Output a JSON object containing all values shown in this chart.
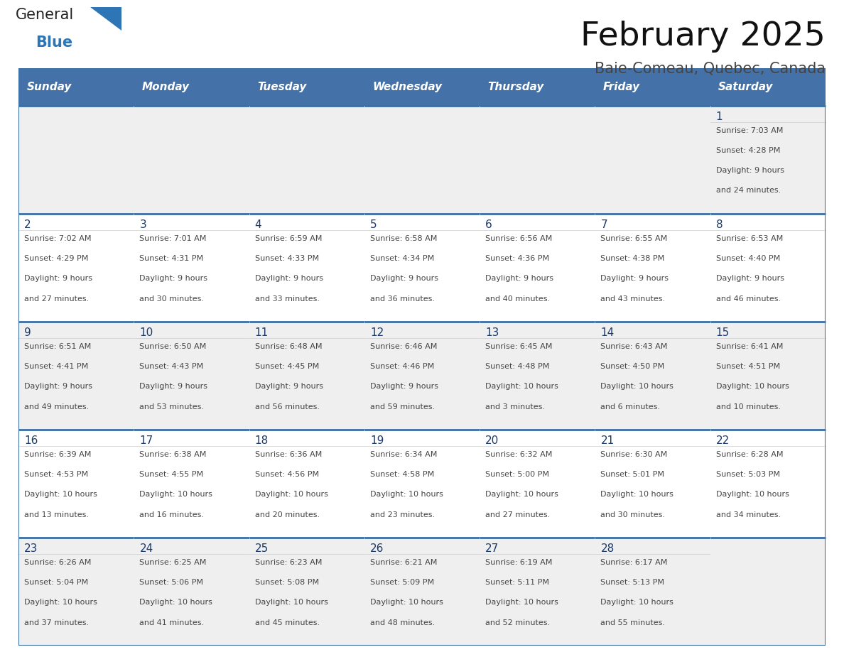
{
  "title": "February 2025",
  "subtitle": "Baie-Comeau, Quebec, Canada",
  "days_of_week": [
    "Sunday",
    "Monday",
    "Tuesday",
    "Wednesday",
    "Thursday",
    "Friday",
    "Saturday"
  ],
  "header_bg": "#4472A8",
  "header_text": "#FFFFFF",
  "row_bg_even": "#EFEFEF",
  "row_bg_odd": "#FFFFFF",
  "border_color": "#3A6EA5",
  "text_color": "#444444",
  "day_number_color": "#1A3A6B",
  "logo_general_color": "#222222",
  "logo_blue_color": "#2E75B6",
  "calendar_data": [
    [
      null,
      null,
      null,
      null,
      null,
      null,
      {
        "day": 1,
        "sunrise": "7:03 AM",
        "sunset": "4:28 PM",
        "daylight1": "9 hours",
        "daylight2": "and 24 minutes."
      }
    ],
    [
      {
        "day": 2,
        "sunrise": "7:02 AM",
        "sunset": "4:29 PM",
        "daylight1": "9 hours",
        "daylight2": "and 27 minutes."
      },
      {
        "day": 3,
        "sunrise": "7:01 AM",
        "sunset": "4:31 PM",
        "daylight1": "9 hours",
        "daylight2": "and 30 minutes."
      },
      {
        "day": 4,
        "sunrise": "6:59 AM",
        "sunset": "4:33 PM",
        "daylight1": "9 hours",
        "daylight2": "and 33 minutes."
      },
      {
        "day": 5,
        "sunrise": "6:58 AM",
        "sunset": "4:34 PM",
        "daylight1": "9 hours",
        "daylight2": "and 36 minutes."
      },
      {
        "day": 6,
        "sunrise": "6:56 AM",
        "sunset": "4:36 PM",
        "daylight1": "9 hours",
        "daylight2": "and 40 minutes."
      },
      {
        "day": 7,
        "sunrise": "6:55 AM",
        "sunset": "4:38 PM",
        "daylight1": "9 hours",
        "daylight2": "and 43 minutes."
      },
      {
        "day": 8,
        "sunrise": "6:53 AM",
        "sunset": "4:40 PM",
        "daylight1": "9 hours",
        "daylight2": "and 46 minutes."
      }
    ],
    [
      {
        "day": 9,
        "sunrise": "6:51 AM",
        "sunset": "4:41 PM",
        "daylight1": "9 hours",
        "daylight2": "and 49 minutes."
      },
      {
        "day": 10,
        "sunrise": "6:50 AM",
        "sunset": "4:43 PM",
        "daylight1": "9 hours",
        "daylight2": "and 53 minutes."
      },
      {
        "day": 11,
        "sunrise": "6:48 AM",
        "sunset": "4:45 PM",
        "daylight1": "9 hours",
        "daylight2": "and 56 minutes."
      },
      {
        "day": 12,
        "sunrise": "6:46 AM",
        "sunset": "4:46 PM",
        "daylight1": "9 hours",
        "daylight2": "and 59 minutes."
      },
      {
        "day": 13,
        "sunrise": "6:45 AM",
        "sunset": "4:48 PM",
        "daylight1": "10 hours",
        "daylight2": "and 3 minutes."
      },
      {
        "day": 14,
        "sunrise": "6:43 AM",
        "sunset": "4:50 PM",
        "daylight1": "10 hours",
        "daylight2": "and 6 minutes."
      },
      {
        "day": 15,
        "sunrise": "6:41 AM",
        "sunset": "4:51 PM",
        "daylight1": "10 hours",
        "daylight2": "and 10 minutes."
      }
    ],
    [
      {
        "day": 16,
        "sunrise": "6:39 AM",
        "sunset": "4:53 PM",
        "daylight1": "10 hours",
        "daylight2": "and 13 minutes."
      },
      {
        "day": 17,
        "sunrise": "6:38 AM",
        "sunset": "4:55 PM",
        "daylight1": "10 hours",
        "daylight2": "and 16 minutes."
      },
      {
        "day": 18,
        "sunrise": "6:36 AM",
        "sunset": "4:56 PM",
        "daylight1": "10 hours",
        "daylight2": "and 20 minutes."
      },
      {
        "day": 19,
        "sunrise": "6:34 AM",
        "sunset": "4:58 PM",
        "daylight1": "10 hours",
        "daylight2": "and 23 minutes."
      },
      {
        "day": 20,
        "sunrise": "6:32 AM",
        "sunset": "5:00 PM",
        "daylight1": "10 hours",
        "daylight2": "and 27 minutes."
      },
      {
        "day": 21,
        "sunrise": "6:30 AM",
        "sunset": "5:01 PM",
        "daylight1": "10 hours",
        "daylight2": "and 30 minutes."
      },
      {
        "day": 22,
        "sunrise": "6:28 AM",
        "sunset": "5:03 PM",
        "daylight1": "10 hours",
        "daylight2": "and 34 minutes."
      }
    ],
    [
      {
        "day": 23,
        "sunrise": "6:26 AM",
        "sunset": "5:04 PM",
        "daylight1": "10 hours",
        "daylight2": "and 37 minutes."
      },
      {
        "day": 24,
        "sunrise": "6:25 AM",
        "sunset": "5:06 PM",
        "daylight1": "10 hours",
        "daylight2": "and 41 minutes."
      },
      {
        "day": 25,
        "sunrise": "6:23 AM",
        "sunset": "5:08 PM",
        "daylight1": "10 hours",
        "daylight2": "and 45 minutes."
      },
      {
        "day": 26,
        "sunrise": "6:21 AM",
        "sunset": "5:09 PM",
        "daylight1": "10 hours",
        "daylight2": "and 48 minutes."
      },
      {
        "day": 27,
        "sunrise": "6:19 AM",
        "sunset": "5:11 PM",
        "daylight1": "10 hours",
        "daylight2": "and 52 minutes."
      },
      {
        "day": 28,
        "sunrise": "6:17 AM",
        "sunset": "5:13 PM",
        "daylight1": "10 hours",
        "daylight2": "and 55 minutes."
      },
      null
    ]
  ]
}
